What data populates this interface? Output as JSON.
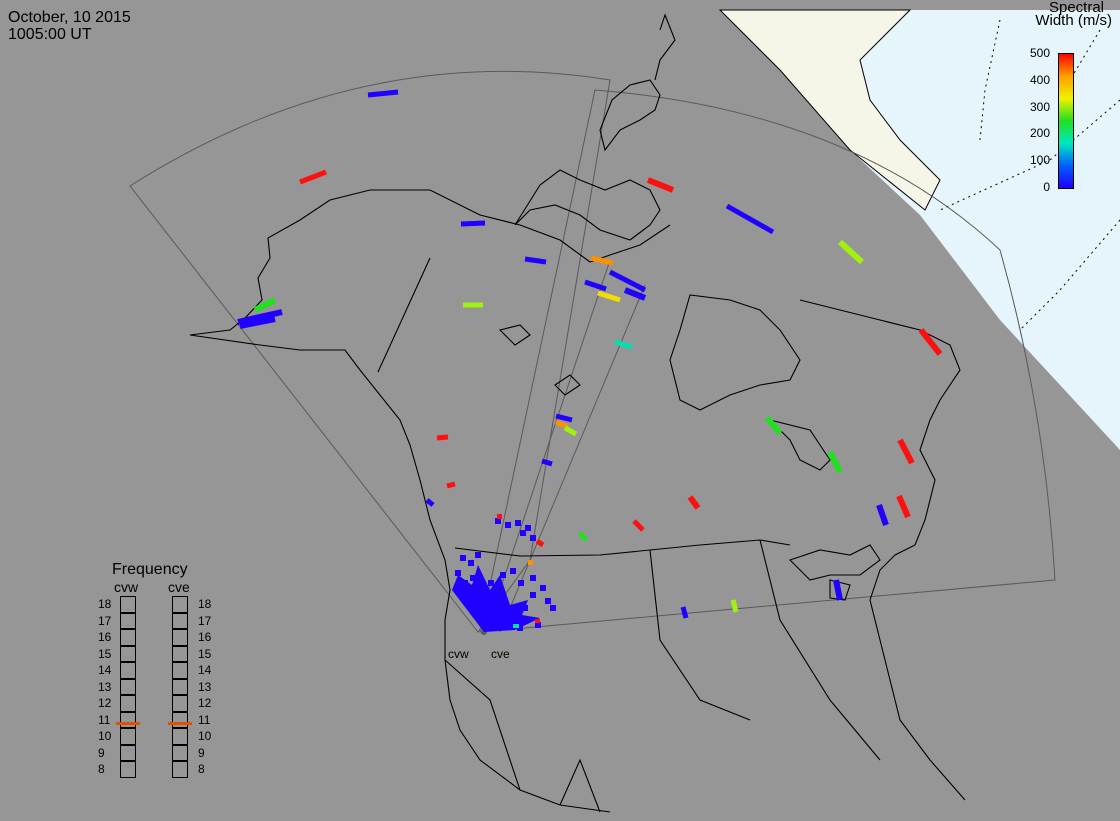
{
  "header": {
    "date": "October, 10 2015",
    "time": "1005:00 UT"
  },
  "colorbar": {
    "title_line1": "Spectral",
    "title_line2": "Width (m/s)",
    "ticks": [
      "500",
      "400",
      "300",
      "200",
      "100",
      "0"
    ],
    "stops": [
      "#ff0000",
      "#ffa000",
      "#f0f000",
      "#20e020",
      "#00e8c0",
      "#0060ff",
      "#2000ff"
    ]
  },
  "frequency": {
    "title": "Frequency",
    "radar_left": "cvw",
    "radar_right": "cve",
    "levels": [
      "18",
      "17",
      "16",
      "15",
      "14",
      "13",
      "12",
      "11",
      "10",
      "9",
      "8"
    ],
    "cvw_value": 10.8,
    "cve_value": 10.8,
    "marker_color": "#e05000"
  },
  "sites": {
    "left": "cvw",
    "right": "cve"
  },
  "colors": {
    "background": "#969696",
    "sea": "#e6f4fc",
    "land_cap": "#f6f6e8",
    "echo_blue": "#2000ff"
  }
}
